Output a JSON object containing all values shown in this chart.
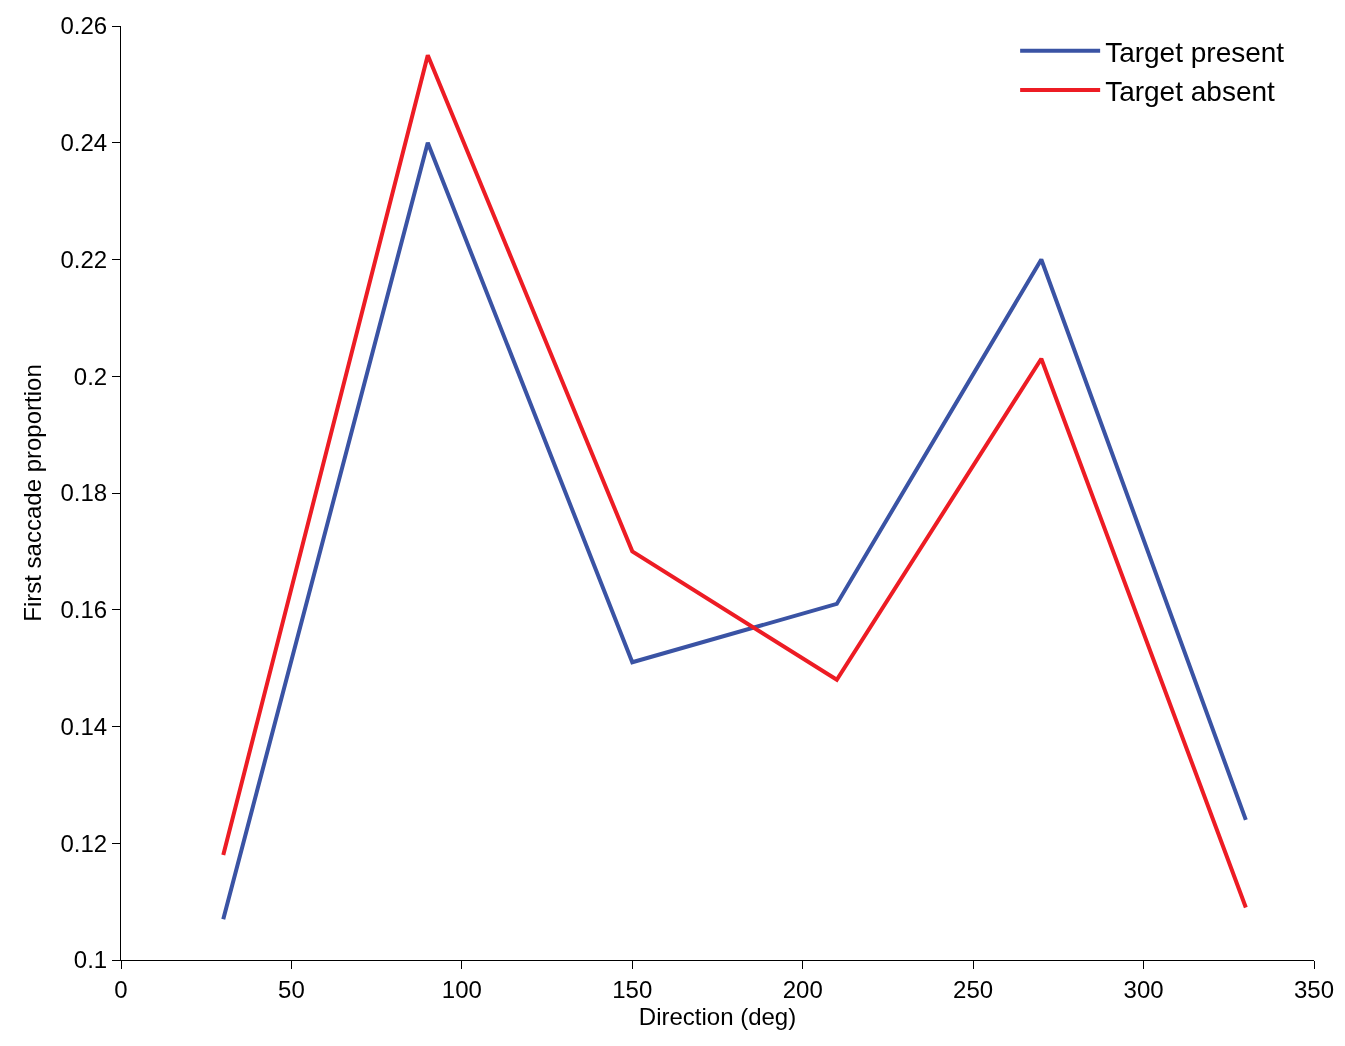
{
  "chart_data": {
    "type": "line",
    "xlabel": "Direction (deg)",
    "ylabel": "First saccade proportion",
    "x": [
      30,
      90,
      150,
      210,
      270,
      330
    ],
    "series": [
      {
        "name": "Target present",
        "color": "#3a53a4",
        "values": [
          0.107,
          0.24,
          0.151,
          0.161,
          0.22,
          0.124
        ]
      },
      {
        "name": "Target absent",
        "color": "#ed1c24",
        "values": [
          0.118,
          0.255,
          0.17,
          0.148,
          0.203,
          0.109
        ]
      }
    ],
    "xlim": [
      0,
      350
    ],
    "xticks": [
      0,
      50,
      100,
      150,
      200,
      250,
      300,
      350
    ],
    "ylim": [
      0.1,
      0.26
    ],
    "yticks": [
      0.1,
      0.12,
      0.14,
      0.16,
      0.18,
      0.2,
      0.22,
      0.24,
      0.26
    ],
    "grid": false,
    "legend": "top right",
    "marker": "none",
    "line_style": "solid"
  }
}
